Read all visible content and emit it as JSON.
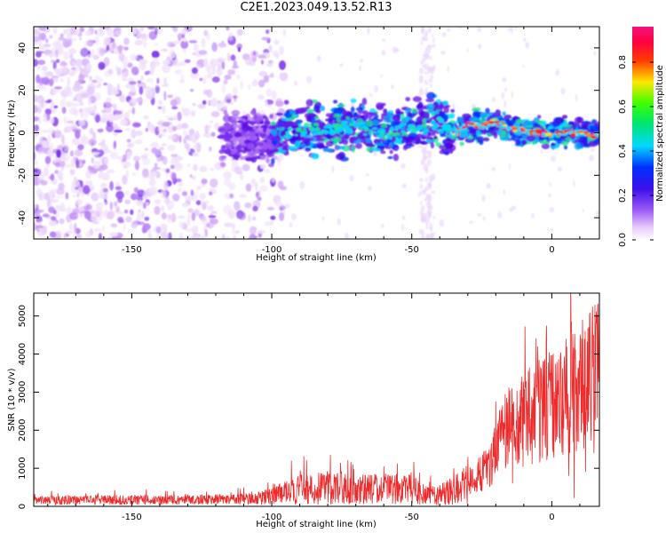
{
  "title": "C2E1.2023.049.13.52.R13",
  "chart_data": [
    {
      "type": "heatmap",
      "xlabel": "Height of straight line (km)",
      "ylabel": "Frequency (Hz)",
      "xlim": [
        -185,
        17
      ],
      "ylim": [
        -50,
        50
      ],
      "xticks": [
        -150,
        -100,
        -50,
        0
      ],
      "xtick_labels": [
        "-150",
        "-100",
        "-50",
        "0"
      ],
      "yticks": [
        -40,
        -20,
        0,
        20,
        40
      ],
      "ytick_labels": [
        "-40",
        "-20",
        "0",
        "20",
        "40"
      ],
      "grid": false,
      "colorbar": {
        "label": "Normalized spectral amplitude",
        "range": [
          0,
          0.96
        ],
        "ticks": [
          0.0,
          0.2,
          0.4,
          0.6,
          0.8
        ],
        "tick_labels": [
          "0.0",
          "0.2",
          "0.4",
          "0.6",
          "0.8"
        ],
        "colormap": "rainbow (white-violet-blue-cyan-green-yellow-red-magenta)"
      },
      "description": "Scattered violet noise for heights below about -100 km; a narrow band near 0 Hz from about -100 km to 17 km, strongest (yellow to red) above about -35 km",
      "ridge": {
        "x": [
          -100,
          -90,
          -80,
          -70,
          -60,
          -50,
          -40,
          -35,
          -30,
          -25,
          -20,
          -15,
          -10,
          -5,
          0,
          5,
          10,
          15
        ],
        "y": [
          -2,
          1,
          2,
          3,
          -1,
          3,
          5,
          -1,
          4,
          3,
          5,
          2,
          1,
          0,
          -1,
          0,
          0,
          -1
        ]
      }
    },
    {
      "type": "line",
      "xlabel": "Height of straight line (km)",
      "ylabel": "SNR (10 * v/v)",
      "xlim": [
        -185,
        17
      ],
      "ylim": [
        0,
        5600
      ],
      "xticks": [
        -150,
        -100,
        -50,
        0
      ],
      "xtick_labels": [
        "-150",
        "-100",
        "-50",
        "0"
      ],
      "yticks": [
        0,
        1000,
        2000,
        3000,
        4000,
        5000
      ],
      "ytick_labels": [
        "0",
        "1000",
        "2000",
        "3000",
        "4000",
        "5000"
      ],
      "grid": false,
      "series": [
        {
          "color": "#ee2a2a",
          "x": [
            -185,
            -175,
            -165,
            -155,
            -145,
            -135,
            -125,
            -115,
            -105,
            -100,
            -95,
            -90,
            -85,
            -80,
            -75,
            -70,
            -65,
            -60,
            -55,
            -50,
            -45,
            -40,
            -35,
            -30,
            -28,
            -25,
            -22,
            -20,
            -17,
            -15,
            -12,
            -10,
            -7,
            -5,
            -3,
            0,
            3,
            5,
            7,
            8,
            10,
            12,
            14,
            16
          ],
          "y": [
            150,
            160,
            170,
            160,
            170,
            170,
            180,
            190,
            200,
            260,
            360,
            440,
            460,
            500,
            480,
            440,
            450,
            460,
            450,
            440,
            280,
            300,
            420,
            600,
            750,
            900,
            1100,
            1500,
            1900,
            2100,
            2200,
            2300,
            2400,
            2500,
            2600,
            2650,
            2750,
            2900,
            3100,
            3000,
            3100,
            3300,
            3500,
            3500
          ],
          "spikes_x": [
            -135,
            -110,
            -93,
            -79,
            -71,
            -60,
            -35,
            -30,
            -25,
            -20,
            -15,
            -12,
            -8,
            -5,
            -2,
            3,
            7,
            8,
            11,
            15,
            16
          ],
          "spikes_y": [
            400,
            500,
            1200,
            1350,
            1100,
            1050,
            1000,
            1300,
            1700,
            2750,
            3050,
            2500,
            3650,
            4200,
            4400,
            3900,
            4850,
            5500,
            4900,
            5200,
            4800
          ],
          "dips_x": [
            -25,
            -14,
            6,
            8,
            12,
            15
          ],
          "dips_y": [
            400,
            600,
            800,
            220,
            900,
            1400
          ]
        }
      ]
    }
  ]
}
